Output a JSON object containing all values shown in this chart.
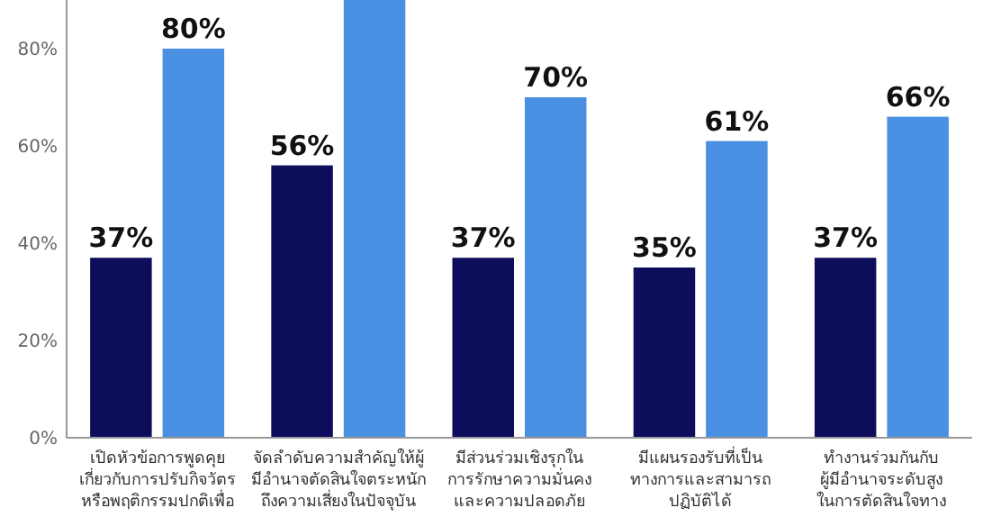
{
  "chart_data": {
    "type": "bar",
    "categories": [
      "เปิดหัวข้อการพูดคุย\nเกี่ยวกับการปรับกิจวัตร\nหรือพฤติกรรมปกติเพื่อ",
      "จัดลำดับความสำคัญให้ผู้\nมีอำนาจตัดสินใจตระหนัก\nถึงความเสี่ยงในปัจจุบัน",
      "มีส่วนร่วมเชิงรุกใน\nการรักษาความมั่นคง\nและความปลอดภัย",
      "มีแผนรองรับที่เป็น\nทางการและสามารถ\nปฏิบัติได้",
      "ทำงานร่วมกันกับ\nผู้มีอำนาจระดับสูง\nในการตัดสินใจทาง"
    ],
    "series": [
      {
        "color": "#0d0d5c",
        "values": [
          37,
          56,
          37,
          35,
          37
        ],
        "value_labels": [
          "37%",
          "56%",
          "37%",
          "35%",
          "37%"
        ]
      },
      {
        "color": "#4a90e2",
        "values": [
          80,
          90,
          70,
          61,
          66
        ],
        "value_labels": [
          "80%",
          null,
          "70%",
          "61%",
          "66%"
        ]
      }
    ],
    "ylim": [
      0,
      90
    ],
    "yticks": [
      {
        "value": 0,
        "label": "0%"
      },
      {
        "value": 20,
        "label": "20%"
      },
      {
        "value": 40,
        "label": "40%"
      },
      {
        "value": 60,
        "label": "60%"
      },
      {
        "value": 80,
        "label": "80%"
      }
    ],
    "grid": false
  }
}
